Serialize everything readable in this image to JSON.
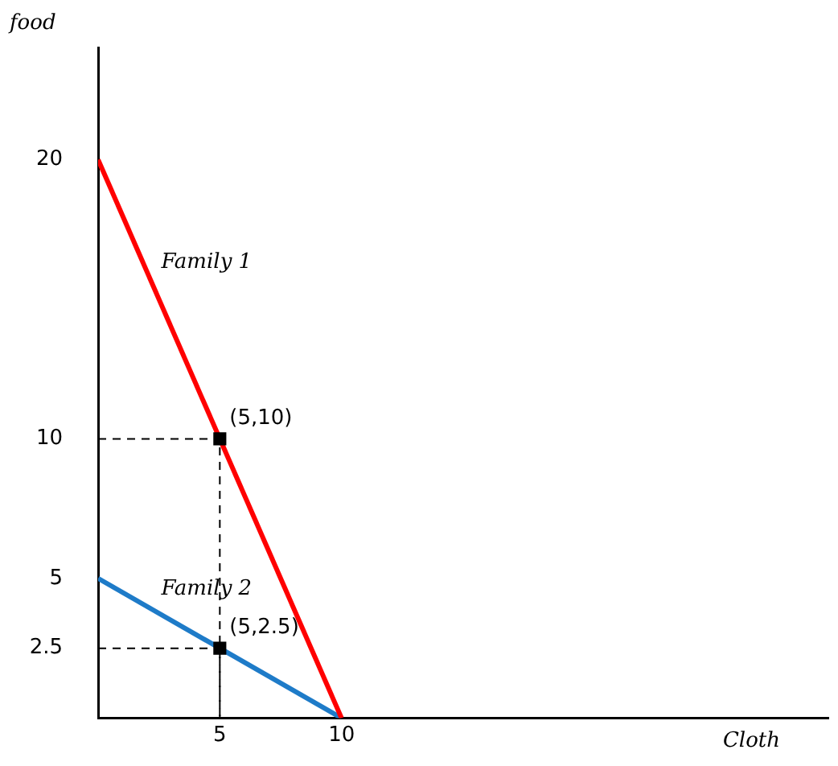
{
  "chart_data": {
    "type": "line",
    "xlabel": "Cloth",
    "ylabel": "food",
    "xlim": [
      0,
      30
    ],
    "ylim": [
      0,
      24
    ],
    "xticks": [
      5,
      10
    ],
    "yticks": [
      2.5,
      5,
      10,
      20
    ],
    "grid": false,
    "legend": false,
    "series": [
      {
        "name": "Family 1",
        "color": "#ff0000",
        "x": [
          0,
          10
        ],
        "values": [
          20,
          0
        ],
        "line_style": "solid",
        "marker": "none"
      },
      {
        "name": "Family 2",
        "color": "#1e7bc8",
        "x": [
          0,
          10
        ],
        "values": [
          5,
          0
        ],
        "line_style": "solid",
        "marker": "none"
      },
      {
        "type": "line",
        "color": "#000000",
        "x": [
          0,
          5,
          5
        ],
        "values": [
          10,
          10,
          0
        ],
        "line_style": "dashed",
        "marker": "none"
      },
      {
        "type": "line",
        "color": "#000000",
        "x": [
          0,
          5,
          5
        ],
        "values": [
          2.5,
          2.5,
          0
        ],
        "line_style": "dashed",
        "marker": "none"
      },
      {
        "type": "scatter",
        "color": "#000000",
        "x": [
          5,
          5
        ],
        "values": [
          10,
          2.5
        ],
        "marker": "square"
      }
    ],
    "annotations": [
      {
        "text": "(5,10)",
        "x": 5,
        "y": 10
      },
      {
        "text": "(5,2.5)",
        "x": 5,
        "y": 2.5
      }
    ]
  }
}
